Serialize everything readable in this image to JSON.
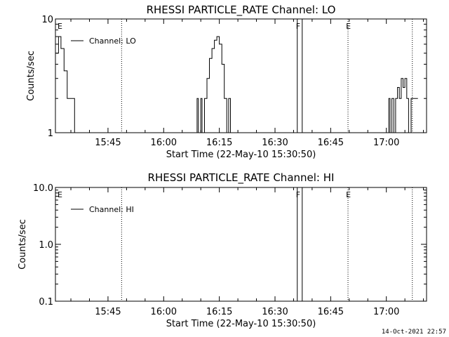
{
  "footer_timestamp": "14-Oct-2021 22:57",
  "chart_data": [
    {
      "type": "line",
      "title": "RHESSI PARTICLE_RATE Channel: LO",
      "xlabel": "Start Time (22-May-10 15:30:50)",
      "ylabel": "Counts/sec",
      "yscale": "log",
      "ylim": [
        1,
        10
      ],
      "ytick_labels": [
        "1",
        "10"
      ],
      "xtick_labels": [
        "15:45",
        "16:00",
        "16:15",
        "16:30",
        "16:45",
        "17:00"
      ],
      "x_range": [
        "15:30:50",
        "17:10:50"
      ],
      "legend": "top-left",
      "series": [
        {
          "name": "Channel: LO",
          "x": [
            "15:31:00",
            "15:31:40",
            "15:32:20",
            "15:33:10",
            "15:34:00",
            "15:35:20",
            "15:36:00",
            "15:37:00",
            "16:08:40",
            "16:09:00",
            "16:09:20",
            "16:10:00",
            "16:10:20",
            "16:11:00",
            "16:11:40",
            "16:12:20",
            "16:13:00",
            "16:13:40",
            "16:14:20",
            "16:15:00",
            "16:15:40",
            "16:16:20",
            "16:17:00",
            "16:17:30",
            "16:18:00",
            "17:00:20",
            "17:00:40",
            "17:01:00",
            "17:01:30",
            "17:02:00",
            "17:02:30",
            "17:03:00",
            "17:03:30",
            "17:04:00",
            "17:04:30",
            "17:05:00",
            "17:05:30",
            "17:06:00",
            "17:06:40",
            "17:07:00",
            "17:08:30"
          ],
          "y": [
            5.0,
            7.0,
            5.5,
            3.5,
            2.0,
            2.0,
            1.0,
            1.0,
            1.0,
            2.0,
            1.0,
            2.0,
            1.0,
            2.0,
            3.0,
            4.5,
            5.5,
            6.5,
            7.0,
            6.0,
            4.0,
            2.0,
            1.0,
            2.0,
            1.0,
            1.0,
            2.0,
            1.0,
            2.0,
            1.0,
            2.0,
            2.5,
            2.0,
            3.0,
            2.5,
            3.0,
            2.0,
            1.0,
            2.0,
            2.0,
            2.0
          ]
        }
      ],
      "markers": [
        {
          "label": "E",
          "time": "15:30:50"
        },
        {
          "label": "F",
          "time": "16:36:00"
        },
        {
          "label": "E",
          "time": "16:49:30"
        }
      ],
      "dotted_lines": [
        "15:48:40",
        "16:49:40",
        "17:07:00"
      ],
      "solid_lines": [
        "16:36:00",
        "16:37:20"
      ]
    },
    {
      "type": "line",
      "title": "RHESSI PARTICLE_RATE Channel: HI",
      "xlabel": "Start Time (22-May-10 15:30:50)",
      "ylabel": "Counts/sec",
      "yscale": "log",
      "ylim": [
        0.1,
        10.0
      ],
      "ytick_labels": [
        "0.1",
        "1.0",
        "10.0"
      ],
      "xtick_labels": [
        "15:45",
        "16:00",
        "16:15",
        "16:30",
        "16:45",
        "17:00"
      ],
      "x_range": [
        "15:30:50",
        "17:10:50"
      ],
      "legend": "top-left",
      "series": [
        {
          "name": "Channel: HI",
          "x": [],
          "y": []
        }
      ],
      "markers": [
        {
          "label": "E",
          "time": "15:30:50"
        },
        {
          "label": "F",
          "time": "16:36:00"
        },
        {
          "label": "E",
          "time": "16:49:30"
        }
      ],
      "dotted_lines": [
        "15:48:40",
        "16:49:40",
        "17:07:00"
      ],
      "solid_lines": [
        "16:36:00",
        "16:37:20"
      ]
    }
  ]
}
